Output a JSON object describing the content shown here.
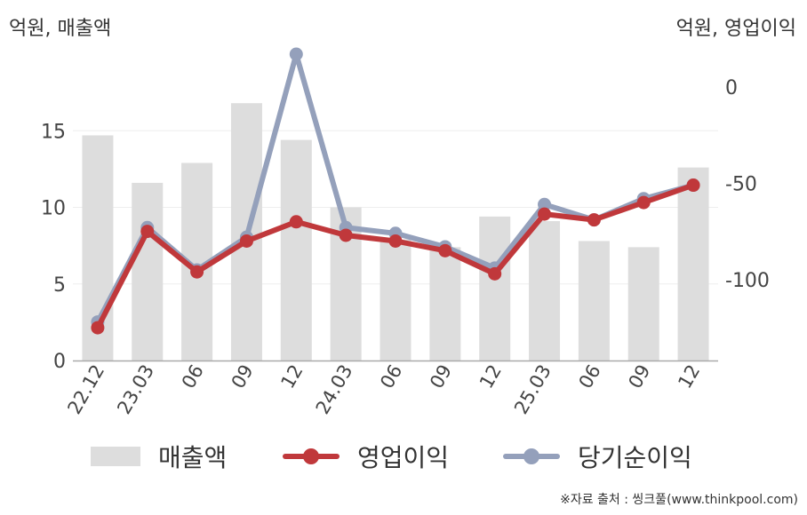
{
  "unit_left": "억원, 매출액",
  "unit_right": "억원, 영업이익",
  "source": "※자료 출처 : 씽크풀(www.thinkpool.com)",
  "colors": {
    "bar": "#dddddd",
    "operating": "#c0383b",
    "net": "#94a0bb",
    "axis": "#aaaaaa",
    "grid": "#eeeeee"
  },
  "chart_data": {
    "type": "bar",
    "categories": [
      "22.12",
      "23.03",
      "06",
      "09",
      "12",
      "24.03",
      "06",
      "09",
      "12",
      "25.03",
      "06",
      "09",
      "12"
    ],
    "left_axis": {
      "ylim": [
        0,
        20
      ],
      "ticks": [
        "0",
        "5",
        "10",
        "15"
      ],
      "tick_values": [
        0,
        5,
        10,
        15
      ]
    },
    "right_axis": {
      "ylim": [
        -142,
        17
      ],
      "ticks": [
        "0",
        "-50",
        "-100"
      ],
      "tick_values": [
        0,
        -50,
        -100
      ]
    },
    "grid": true,
    "legend_position": "bottom",
    "series": [
      {
        "name": "매출액",
        "type": "bar",
        "axis": "left",
        "values": [
          14.7,
          11.6,
          12.9,
          16.8,
          14.4,
          10.0,
          7.9,
          7.4,
          9.4,
          9.1,
          7.8,
          7.4,
          12.6
        ]
      },
      {
        "name": "영업이익",
        "type": "line",
        "axis": "right",
        "values": [
          -125,
          -75,
          -96,
          -80,
          -70,
          -77,
          -80,
          -85,
          -97,
          -66,
          -69,
          -60,
          -51
        ]
      },
      {
        "name": "당기순이익",
        "type": "line",
        "axis": "right",
        "values": [
          -122,
          -73,
          -95,
          -78,
          17,
          -73,
          -76,
          -83,
          -94,
          -61,
          -69,
          -58,
          -51
        ]
      }
    ]
  }
}
